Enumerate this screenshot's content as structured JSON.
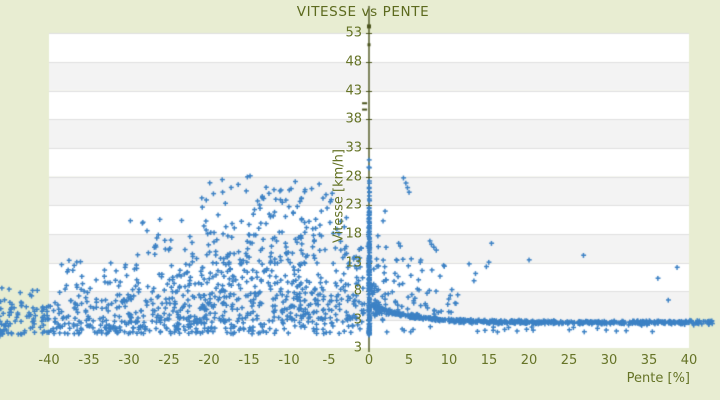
{
  "page": {
    "background": "#e8edd2"
  },
  "chart_data": {
    "type": "scatter",
    "title": "VITESSE vs PENTE",
    "xlabel": "Pente [%]",
    "ylabel": "Vitesse [km/h]",
    "axis_xlim": [
      -40,
      40
    ],
    "axis_ylim": [
      -2,
      53
    ],
    "x_ticks": [
      -40,
      -35,
      -30,
      -25,
      -20,
      -15,
      -10,
      -5,
      0,
      5,
      10,
      15,
      20,
      25,
      30,
      35,
      40
    ],
    "y_ticks": [
      53,
      48,
      43,
      38,
      33,
      28,
      23,
      18,
      13,
      8,
      3
    ],
    "y_axis_bottom_label": "3",
    "grid": "horizontal-bands-alternating",
    "legend_position": "none",
    "point_shape": "plus",
    "colors": {
      "point": "#3d82c5",
      "axis": "#4a531c",
      "label": "#667427",
      "title": "#5c6a1e",
      "band_gray": "#f3f3f3",
      "band_white": "#ffffff",
      "gridline": "#dfdfdf",
      "background": "#e8edd2"
    },
    "scatter_model": {
      "seed": 20,
      "clusters": [
        {
          "kind": "box",
          "n": 430,
          "p": [
            -41,
            -0.8
          ],
          "v": [
            0.6,
            6.5
          ],
          "vpow": 1.25
        },
        {
          "kind": "box",
          "n": 235,
          "p": [
            -39,
            -1.2
          ],
          "v": [
            6.5,
            14
          ],
          "vpow": 1.35,
          "ppow": 0.85
        },
        {
          "kind": "box",
          "n": 110,
          "p": [
            -30,
            -2.5
          ],
          "v": [
            14,
            21
          ],
          "vpow": 1.3,
          "ppow": 0.8
        },
        {
          "kind": "box",
          "n": 46,
          "p": [
            -21,
            -4
          ],
          "v": [
            21,
            28.6
          ],
          "vpow": 1.2,
          "ppow": 0.9
        },
        {
          "kind": "box",
          "n": 55,
          "p": [
            -46.2,
            -40
          ],
          "v": [
            0.4,
            5.8
          ]
        },
        {
          "kind": "box",
          "n": 10,
          "p": [
            -46.2,
            -41
          ],
          "v": [
            5.8,
            9.2
          ]
        },
        {
          "kind": "box",
          "n": 14,
          "p": [
            -46.2,
            -44.8
          ],
          "v": [
            0.2,
            2.8
          ]
        },
        {
          "kind": "arc",
          "n": 30,
          "k": 52,
          "p": [
            -34,
            -9
          ],
          "jp": 0.2,
          "jv": 0.3
        },
        {
          "kind": "arc",
          "n": 26,
          "k": 80,
          "p": [
            -30,
            -8
          ],
          "jp": 0.2,
          "jv": 0.3
        },
        {
          "kind": "arc",
          "n": 26,
          "k": 110,
          "p": [
            -26,
            -7.5
          ],
          "jp": 0.18,
          "jv": 0.35
        },
        {
          "kind": "arc",
          "n": 24,
          "k": 150,
          "p": [
            -24,
            -7
          ],
          "jp": 0.15,
          "jv": 0.4
        },
        {
          "kind": "arc",
          "n": 26,
          "k": 205,
          "p": [
            -23,
            -7.5
          ],
          "jp": 0.15,
          "jv": 0.4
        },
        {
          "kind": "arc",
          "n": 22,
          "k": 255,
          "p": [
            -25,
            -8.8
          ],
          "jp": 0.15,
          "jv": 0.45
        },
        {
          "kind": "vline",
          "n": 135,
          "v": [
            0.3,
            18
          ],
          "jp": 0.12,
          "vpow": 1.15
        },
        {
          "kind": "vline",
          "n": 30,
          "v": [
            18,
            26
          ],
          "jp": 0.1
        },
        {
          "kind": "vline",
          "n": 6,
          "v": [
            26,
            32
          ],
          "jp": 0.08
        },
        {
          "kind": "box",
          "n": 48,
          "p": [
            -2.2,
            2.2
          ],
          "v": [
            2.5,
            16
          ],
          "vpow": 1.25
        },
        {
          "kind": "decay",
          "n": 620,
          "p": [
            0.4,
            43
          ],
          "base": 2.6,
          "amp": 3.4,
          "tau": 4.5,
          "noise": 0.55,
          "vmin": 0.9
        },
        {
          "kind": "box",
          "n": 25,
          "p": [
            1,
            40
          ],
          "v": [
            0.9,
            1.9
          ]
        },
        {
          "kind": "box",
          "n": 78,
          "p": [
            0.3,
            12
          ],
          "v": [
            4,
            9.5
          ],
          "vpow": 1.5,
          "ppow": 1.6
        },
        {
          "kind": "box",
          "n": 25,
          "p": [
            0.5,
            15
          ],
          "v": [
            9.5,
            14
          ],
          "ppow": 1.4
        }
      ],
      "outlier_points": [
        [
          4.3,
          27.8
        ],
        [
          4.6,
          26.9
        ],
        [
          4.8,
          26.1
        ],
        [
          5.0,
          25.3
        ],
        [
          2.0,
          22.0
        ],
        [
          1.75,
          20.3
        ],
        [
          1.1,
          17.7
        ],
        [
          3.7,
          16.4
        ],
        [
          3.9,
          15.9
        ],
        [
          7.6,
          16.8
        ],
        [
          7.8,
          16.2
        ],
        [
          8.1,
          15.7
        ],
        [
          8.4,
          15.2
        ],
        [
          15.3,
          16.4
        ],
        [
          26.8,
          14.3
        ],
        [
          38.5,
          12.2
        ],
        [
          36.1,
          10.3
        ],
        [
          37.4,
          6.5
        ],
        [
          6.4,
          13.1
        ],
        [
          1.0,
          12.4
        ],
        [
          12.5,
          12.8
        ],
        [
          20,
          13.5
        ],
        [
          -45.9,
          8.6
        ],
        [
          -45.0,
          8.4
        ]
      ],
      "axis_marks": [
        {
          "p": 0,
          "v": 54.2,
          "w": 4,
          "h": 4
        },
        {
          "p": 0,
          "v": 51.0,
          "w": 3,
          "h": 3
        },
        {
          "p": -0.55,
          "v": 40.8,
          "w": 5,
          "h": 2
        },
        {
          "p": -0.55,
          "v": 39.7,
          "w": 5,
          "h": 2
        }
      ]
    }
  }
}
